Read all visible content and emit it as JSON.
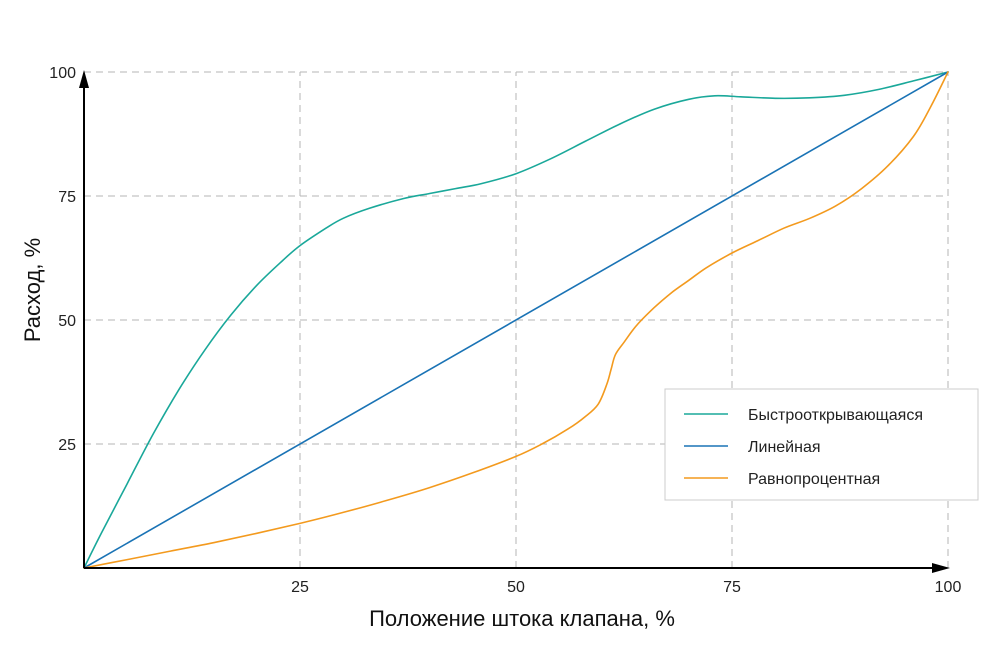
{
  "chart_data": {
    "type": "line",
    "title": "",
    "xlabel": "Положение штока клапана, %",
    "ylabel": "Расход, %",
    "xlim": [
      0,
      100
    ],
    "ylim": [
      0,
      100
    ],
    "x_ticks": [
      25,
      50,
      75,
      100
    ],
    "y_ticks": [
      25,
      50,
      75,
      100
    ],
    "x_tick_labels": [
      "25",
      "50",
      "75",
      "100"
    ],
    "y_tick_labels": [
      "25",
      "50",
      "75",
      "100"
    ],
    "grid": true,
    "legend_position": "lower-right",
    "series": [
      {
        "name": "Быстрооткрывающаяся",
        "color": "#1aa89a",
        "points": [
          [
            0,
            0
          ],
          [
            2,
            7
          ],
          [
            5,
            17
          ],
          [
            8,
            27
          ],
          [
            11,
            36
          ],
          [
            14,
            44
          ],
          [
            17,
            51
          ],
          [
            20,
            57
          ],
          [
            23,
            62
          ],
          [
            25,
            65
          ],
          [
            28,
            68.5
          ],
          [
            30,
            70.5
          ],
          [
            33,
            72.5
          ],
          [
            37,
            74.5
          ],
          [
            40,
            75.5
          ],
          [
            43,
            76.5
          ],
          [
            46,
            77.5
          ],
          [
            50,
            79.5
          ],
          [
            54,
            82.5
          ],
          [
            58,
            86
          ],
          [
            62,
            89.5
          ],
          [
            66,
            92.5
          ],
          [
            70,
            94.5
          ],
          [
            73,
            95.2
          ],
          [
            76,
            95
          ],
          [
            80,
            94.7
          ],
          [
            84,
            94.8
          ],
          [
            88,
            95.3
          ],
          [
            92,
            96.5
          ],
          [
            96,
            98.2
          ],
          [
            100,
            100
          ]
        ]
      },
      {
        "name": "Линейная",
        "color": "#1a73b5",
        "points": [
          [
            0,
            0
          ],
          [
            100,
            100
          ]
        ]
      },
      {
        "name": "Равнопроцентная",
        "color": "#f39a1e",
        "points": [
          [
            0,
            0
          ],
          [
            5,
            1.7
          ],
          [
            10,
            3.4
          ],
          [
            15,
            5.1
          ],
          [
            20,
            7
          ],
          [
            25,
            9
          ],
          [
            30,
            11.2
          ],
          [
            35,
            13.6
          ],
          [
            40,
            16.2
          ],
          [
            45,
            19.2
          ],
          [
            50,
            22.5
          ],
          [
            53,
            25
          ],
          [
            56,
            28
          ],
          [
            58,
            30.5
          ],
          [
            59.5,
            33
          ],
          [
            60.5,
            37
          ],
          [
            61,
            40
          ],
          [
            61.5,
            43
          ],
          [
            62.5,
            45.5
          ],
          [
            64,
            49
          ],
          [
            66,
            52.5
          ],
          [
            68,
            55.5
          ],
          [
            70,
            58
          ],
          [
            72,
            60.5
          ],
          [
            75,
            63.5
          ],
          [
            78,
            66
          ],
          [
            81,
            68.5
          ],
          [
            84,
            70.5
          ],
          [
            87,
            73
          ],
          [
            90,
            76.5
          ],
          [
            93,
            81
          ],
          [
            96,
            87
          ],
          [
            98,
            93
          ],
          [
            100,
            100
          ]
        ]
      }
    ]
  }
}
